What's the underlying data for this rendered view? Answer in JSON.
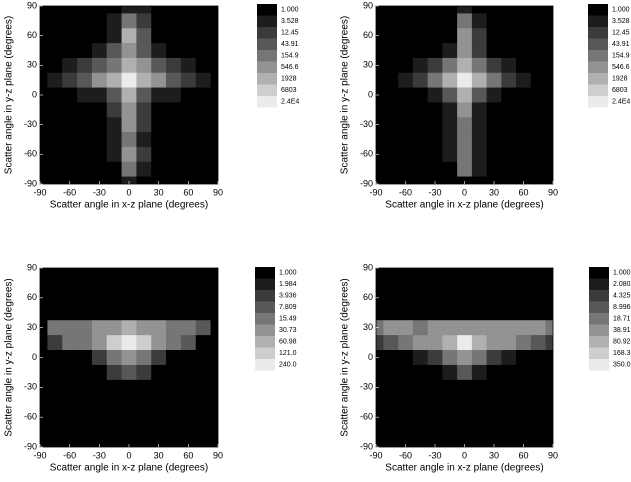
{
  "chart_data": [
    {
      "type": "heatmap",
      "xlabel": "Scatter angle in x-z plane (degrees)",
      "ylabel": "Scatter angle in y-z plane (degrees)",
      "xlim": [
        -90,
        90
      ],
      "ylim": [
        -90,
        90
      ],
      "xticks": [
        -90,
        -60,
        -30,
        0,
        30,
        60,
        90
      ],
      "yticks": [
        -90,
        -60,
        -30,
        0,
        30,
        60,
        90
      ],
      "x": [
        -90,
        -75,
        -60,
        -45,
        -30,
        -15,
        0,
        15,
        30,
        45,
        60,
        75,
        90
      ],
      "y": [
        90,
        75,
        60,
        45,
        30,
        15,
        0,
        -15,
        -30,
        -45,
        -60,
        -75,
        -90
      ],
      "levels": [
        {
          "value": 1,
          "label": "1.000"
        },
        3.528,
        12.45,
        43.91,
        154.9,
        546.6,
        1928,
        6803,
        {
          "value": 24000,
          "label": "2.4E4"
        }
      ],
      "z": [
        [
          1,
          1,
          1,
          1,
          1,
          1,
          12,
          4,
          1,
          1,
          1,
          1,
          1
        ],
        [
          1,
          1,
          1,
          1,
          1,
          4,
          400,
          40,
          1,
          1,
          1,
          1,
          1
        ],
        [
          1,
          1,
          1,
          1,
          1,
          12,
          2000,
          150,
          1,
          1,
          1,
          1,
          1
        ],
        [
          1,
          1,
          1,
          1,
          4,
          50,
          1500,
          100,
          4,
          1,
          1,
          1,
          1
        ],
        [
          1,
          1,
          12,
          40,
          100,
          400,
          5000,
          600,
          150,
          40,
          12,
          1,
          1
        ],
        [
          1,
          4,
          40,
          150,
          600,
          3000,
          24000,
          3000,
          600,
          150,
          40,
          4,
          1
        ],
        [
          1,
          1,
          1,
          4,
          12,
          100,
          2000,
          100,
          12,
          4,
          1,
          1,
          1
        ],
        [
          1,
          1,
          1,
          1,
          1,
          40,
          800,
          40,
          1,
          1,
          1,
          1,
          1
        ],
        [
          1,
          1,
          1,
          1,
          1,
          12,
          600,
          40,
          1,
          1,
          1,
          1,
          1
        ],
        [
          1,
          1,
          1,
          1,
          1,
          4,
          400,
          12,
          1,
          1,
          1,
          1,
          1
        ],
        [
          1,
          1,
          1,
          1,
          1,
          12,
          600,
          40,
          1,
          1,
          1,
          1,
          1
        ],
        [
          1,
          1,
          1,
          1,
          1,
          1,
          200,
          12,
          1,
          1,
          1,
          1,
          1
        ],
        [
          1,
          1,
          1,
          1,
          1,
          1,
          4,
          1,
          1,
          1,
          1,
          1,
          1
        ]
      ]
    },
    {
      "type": "heatmap",
      "xlabel": "Scatter angle in x-z plane (degrees)",
      "ylabel": "Scatter angle in y-z plane (degrees)",
      "xlim": [
        -90,
        90
      ],
      "ylim": [
        -90,
        90
      ],
      "xticks": [
        -90,
        -60,
        -30,
        0,
        30,
        60,
        90
      ],
      "yticks": [
        -90,
        -60,
        -30,
        0,
        30,
        60,
        90
      ],
      "x": [
        -90,
        -75,
        -60,
        -45,
        -30,
        -15,
        0,
        15,
        30,
        45,
        60,
        75,
        90
      ],
      "y": [
        90,
        75,
        60,
        45,
        30,
        15,
        0,
        -15,
        -30,
        -45,
        -60,
        -75,
        -90
      ],
      "levels": [
        {
          "value": 1,
          "label": "1.000"
        },
        3.528,
        12.45,
        43.91,
        154.9,
        546.6,
        1928,
        6803,
        {
          "value": 24000,
          "label": "2.4E4"
        }
      ],
      "z": [
        [
          1,
          1,
          1,
          1,
          1,
          1,
          12,
          1,
          1,
          1,
          1,
          1,
          1
        ],
        [
          1,
          1,
          1,
          1,
          1,
          1,
          300,
          12,
          1,
          1,
          1,
          1,
          1
        ],
        [
          1,
          1,
          1,
          1,
          1,
          1,
          1500,
          40,
          1,
          1,
          1,
          1,
          1
        ],
        [
          1,
          1,
          1,
          1,
          1,
          12,
          1200,
          40,
          1,
          1,
          1,
          1,
          1
        ],
        [
          1,
          1,
          1,
          4,
          40,
          300,
          5000,
          300,
          40,
          4,
          1,
          1,
          1
        ],
        [
          1,
          1,
          4,
          40,
          400,
          3000,
          24000,
          3000,
          400,
          40,
          4,
          1,
          1
        ],
        [
          1,
          1,
          1,
          1,
          12,
          100,
          2000,
          100,
          12,
          1,
          1,
          1,
          1
        ],
        [
          1,
          1,
          1,
          1,
          1,
          12,
          700,
          12,
          1,
          1,
          1,
          1,
          1
        ],
        [
          1,
          1,
          1,
          1,
          1,
          4,
          500,
          12,
          1,
          1,
          1,
          1,
          1
        ],
        [
          1,
          1,
          1,
          1,
          1,
          4,
          400,
          4,
          1,
          1,
          1,
          1,
          1
        ],
        [
          1,
          1,
          1,
          1,
          1,
          12,
          500,
          12,
          1,
          1,
          1,
          1,
          1
        ],
        [
          1,
          1,
          1,
          1,
          1,
          1,
          300,
          4,
          1,
          1,
          1,
          1,
          1
        ],
        [
          1,
          1,
          1,
          1,
          1,
          1,
          1,
          1,
          1,
          1,
          1,
          1,
          1
        ]
      ]
    },
    {
      "type": "heatmap",
      "xlabel": "Scatter angle in x-z plane (degrees)",
      "ylabel": "Scatter angle in y-z plane (degrees)",
      "xlim": [
        -90,
        90
      ],
      "ylim": [
        -90,
        90
      ],
      "xticks": [
        -90,
        -60,
        -30,
        0,
        30,
        60,
        90
      ],
      "yticks": [
        -90,
        -60,
        -30,
        0,
        30,
        60,
        90
      ],
      "x": [
        -90,
        -75,
        -60,
        -45,
        -30,
        -15,
        0,
        15,
        30,
        45,
        60,
        75,
        90
      ],
      "y": [
        90,
        75,
        60,
        45,
        30,
        15,
        0,
        -15,
        -30,
        -45,
        -60,
        -75,
        -90
      ],
      "levels": [
        {
          "value": 1,
          "label": "1.000"
        },
        1.984,
        3.936,
        7.809,
        15.49,
        30.73,
        60.98,
        {
          "value": 121,
          "label": "121.0"
        },
        {
          "value": 240,
          "label": "240.0"
        }
      ],
      "z": [
        [
          1,
          1,
          1,
          1,
          1,
          1,
          1,
          1,
          1,
          1,
          1,
          1,
          1
        ],
        [
          1,
          1,
          1,
          1,
          1,
          1,
          1,
          1,
          1,
          1,
          1,
          1,
          1
        ],
        [
          1,
          1,
          1,
          1,
          1,
          1,
          1,
          1,
          1,
          1,
          1,
          1,
          1
        ],
        [
          1,
          1,
          1,
          1,
          1,
          1,
          1,
          1,
          1,
          1,
          1,
          1,
          1
        ],
        [
          1,
          16,
          30,
          30,
          40,
          60,
          80,
          60,
          40,
          30,
          16,
          8,
          1
        ],
        [
          1,
          4,
          16,
          30,
          60,
          121,
          240,
          121,
          60,
          30,
          8,
          1,
          1
        ],
        [
          1,
          1,
          1,
          1,
          4,
          16,
          60,
          16,
          4,
          1,
          1,
          1,
          1
        ],
        [
          1,
          1,
          1,
          1,
          1,
          4,
          8,
          4,
          1,
          1,
          1,
          1,
          1
        ],
        [
          1,
          1,
          1,
          1,
          1,
          1,
          1,
          1,
          1,
          1,
          1,
          1,
          1
        ],
        [
          1,
          1,
          1,
          1,
          1,
          1,
          1,
          1,
          1,
          1,
          1,
          1,
          1
        ],
        [
          1,
          1,
          1,
          1,
          1,
          1,
          1,
          1,
          1,
          1,
          1,
          1,
          1
        ],
        [
          1,
          1,
          1,
          1,
          1,
          1,
          1,
          1,
          1,
          1,
          1,
          1,
          1
        ],
        [
          1,
          1,
          1,
          1,
          1,
          1,
          1,
          1,
          1,
          1,
          1,
          1,
          1
        ]
      ]
    },
    {
      "type": "heatmap",
      "xlabel": "Scatter angle in x-z plane (degrees)",
      "ylabel": "Scatter angle in y-z plane (degrees)",
      "xlim": [
        -90,
        90
      ],
      "ylim": [
        -90,
        90
      ],
      "xticks": [
        -90,
        -60,
        -30,
        0,
        30,
        60,
        90
      ],
      "yticks": [
        -90,
        -60,
        -30,
        0,
        30,
        60,
        90
      ],
      "x": [
        -90,
        -75,
        -60,
        -45,
        -30,
        -15,
        0,
        15,
        30,
        45,
        60,
        75,
        90
      ],
      "y": [
        90,
        75,
        60,
        45,
        30,
        15,
        0,
        -15,
        -30,
        -45,
        -60,
        -75,
        -90
      ],
      "levels": [
        {
          "value": 1,
          "label": "1.000"
        },
        {
          "value": 2.08,
          "label": "2.080"
        },
        4.325,
        8.996,
        18.71,
        38.91,
        80.92,
        168.3,
        {
          "value": 350,
          "label": "350.0"
        }
      ],
      "z": [
        [
          1,
          1,
          1,
          1,
          1,
          1,
          1,
          1,
          1,
          1,
          1,
          1,
          1
        ],
        [
          1,
          1,
          1,
          1,
          1,
          1,
          1,
          1,
          1,
          1,
          1,
          1,
          1
        ],
        [
          1,
          1,
          1,
          1,
          1,
          1,
          1,
          1,
          1,
          1,
          1,
          1,
          1
        ],
        [
          1,
          1,
          1,
          1,
          1,
          1,
          1,
          1,
          1,
          1,
          1,
          1,
          1
        ],
        [
          30,
          40,
          40,
          30,
          40,
          60,
          80,
          60,
          40,
          40,
          40,
          40,
          30
        ],
        [
          8,
          16,
          30,
          40,
          80,
          168,
          350,
          168,
          80,
          40,
          30,
          16,
          8
        ],
        [
          1,
          1,
          1,
          4,
          8,
          20,
          80,
          20,
          8,
          4,
          1,
          1,
          1
        ],
        [
          1,
          1,
          1,
          1,
          1,
          4,
          16,
          4,
          1,
          1,
          1,
          1,
          1
        ],
        [
          1,
          1,
          1,
          1,
          1,
          1,
          1,
          1,
          1,
          1,
          1,
          1,
          1
        ],
        [
          1,
          1,
          1,
          1,
          1,
          1,
          1,
          1,
          1,
          1,
          1,
          1,
          1
        ],
        [
          1,
          1,
          1,
          1,
          1,
          1,
          1,
          1,
          1,
          1,
          1,
          1,
          1
        ],
        [
          1,
          1,
          1,
          1,
          1,
          1,
          1,
          1,
          1,
          1,
          1,
          1,
          1
        ],
        [
          1,
          1,
          1,
          1,
          1,
          1,
          1,
          1,
          1,
          1,
          1,
          1,
          1
        ]
      ]
    }
  ]
}
